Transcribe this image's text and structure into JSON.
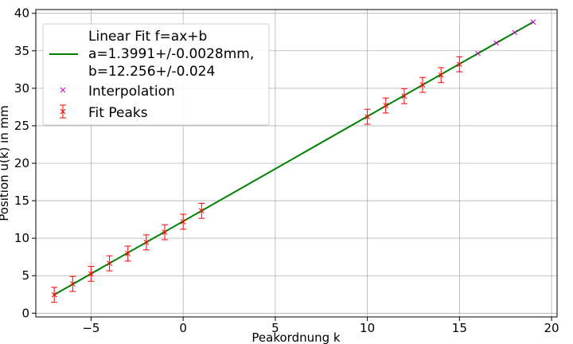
{
  "chart_data": {
    "type": "scatter",
    "xlabel": "Peakordnung k",
    "ylabel": "Position u(k) in mm",
    "xlim": [
      -8,
      20.3
    ],
    "ylim": [
      -0.5,
      40.5
    ],
    "grid": true,
    "legend_position": "top-left",
    "x_ticks": [
      -5,
      0,
      5,
      10,
      15,
      20
    ],
    "x_tick_labels": [
      "−5",
      "0",
      "5",
      "10",
      "15",
      "20"
    ],
    "y_ticks": [
      0,
      5,
      10,
      15,
      20,
      25,
      30,
      35,
      40
    ],
    "y_tick_labels": [
      "0",
      "5",
      "10",
      "15",
      "20",
      "25",
      "30",
      "35",
      "40"
    ],
    "series": [
      {
        "name": "Linear Fit f=ax+b\na=1.3991+/-0.0028mm,\nb=12.256+/-0.024",
        "kind": "line",
        "color": "#008000",
        "x": [
          -7,
          19
        ],
        "y": [
          2.462,
          38.839
        ]
      },
      {
        "name": "Interpolation",
        "kind": "marker",
        "color": "#bf00bf",
        "x": [
          16,
          17,
          18,
          19
        ],
        "y": [
          34.64,
          36.04,
          37.44,
          38.84
        ]
      },
      {
        "name": "Fit Peaks",
        "kind": "errorbar",
        "color": "#ff0000",
        "x": [
          -7,
          -6,
          -5,
          -4,
          -3,
          -2,
          -1,
          0,
          1,
          10,
          11,
          12,
          13,
          14,
          15
        ],
        "y": [
          2.45,
          3.9,
          5.25,
          6.65,
          7.95,
          9.45,
          10.8,
          12.2,
          13.65,
          26.2,
          27.7,
          28.95,
          30.45,
          31.75,
          33.2
        ],
        "yerr": 1.0
      }
    ]
  }
}
